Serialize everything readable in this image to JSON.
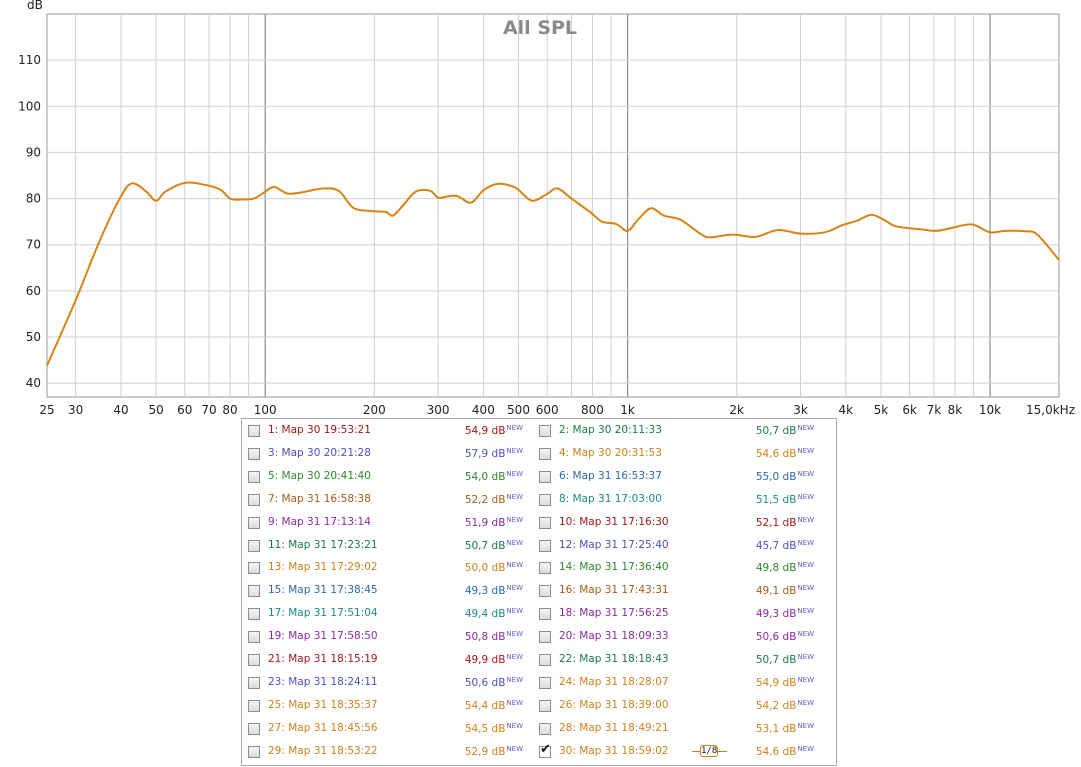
{
  "chart_data": {
    "type": "line",
    "title": "All SPL",
    "ylabel": "dB",
    "xscale": "log",
    "xlim": [
      25,
      15500
    ],
    "ylim": [
      37,
      120
    ],
    "y_ticks": [
      40,
      50,
      60,
      70,
      80,
      90,
      100,
      110
    ],
    "x_ticks": [
      25,
      30,
      40,
      50,
      60,
      70,
      80,
      100,
      200,
      300,
      400,
      500,
      600,
      800,
      1000,
      2000,
      3000,
      4000,
      5000,
      6000,
      7000,
      8000,
      10000,
      15000
    ],
    "x_tick_labels": [
      "25",
      "30",
      "40",
      "50",
      "60",
      "70",
      "80",
      "100",
      "200",
      "300",
      "400",
      "500",
      "600",
      "800",
      "1k",
      "2k",
      "3k",
      "4k",
      "5k",
      "6k",
      "7k",
      "8k",
      "10k",
      "15,0kHz"
    ],
    "grid": true,
    "series": [
      {
        "color": "#d98216",
        "points": [
          [
            25,
            43.8
          ],
          [
            30,
            58
          ],
          [
            35,
            71
          ],
          [
            40,
            80.5
          ],
          [
            43,
            83.3
          ],
          [
            47,
            81.5
          ],
          [
            50,
            79.5
          ],
          [
            53,
            81.5
          ],
          [
            60,
            83.4
          ],
          [
            67,
            83.1
          ],
          [
            75,
            82
          ],
          [
            80,
            80
          ],
          [
            86,
            79.8
          ],
          [
            93,
            80
          ],
          [
            100,
            81.5
          ],
          [
            106,
            82.5
          ],
          [
            115,
            81.1
          ],
          [
            125,
            81.3
          ],
          [
            145,
            82.2
          ],
          [
            160,
            81.6
          ],
          [
            175,
            78
          ],
          [
            195,
            77.3
          ],
          [
            215,
            77.1
          ],
          [
            225,
            76.3
          ],
          [
            240,
            78.5
          ],
          [
            260,
            81.5
          ],
          [
            285,
            81.7
          ],
          [
            300,
            80.2
          ],
          [
            320,
            80.5
          ],
          [
            340,
            80.5
          ],
          [
            370,
            79.1
          ],
          [
            400,
            81.8
          ],
          [
            440,
            83.2
          ],
          [
            490,
            82.4
          ],
          [
            520,
            80.6
          ],
          [
            550,
            79.5
          ],
          [
            600,
            81
          ],
          [
            640,
            82.2
          ],
          [
            700,
            80
          ],
          [
            790,
            77
          ],
          [
            850,
            75
          ],
          [
            930,
            74.5
          ],
          [
            1000,
            73
          ],
          [
            1070,
            75.5
          ],
          [
            1160,
            77.9
          ],
          [
            1260,
            76.3
          ],
          [
            1400,
            75.4
          ],
          [
            1600,
            72.2
          ],
          [
            1700,
            71.6
          ],
          [
            1950,
            72.2
          ],
          [
            2250,
            71.7
          ],
          [
            2600,
            73.2
          ],
          [
            3000,
            72.4
          ],
          [
            3500,
            72.7
          ],
          [
            3900,
            74.2
          ],
          [
            4300,
            75.2
          ],
          [
            4700,
            76.5
          ],
          [
            5100,
            75.4
          ],
          [
            5500,
            74
          ],
          [
            6500,
            73.3
          ],
          [
            7100,
            73
          ],
          [
            7800,
            73.6
          ],
          [
            8900,
            74.4
          ],
          [
            10000,
            72.7
          ],
          [
            11000,
            73
          ],
          [
            12500,
            72.9
          ],
          [
            13500,
            72.2
          ],
          [
            15500,
            66.7
          ]
        ]
      }
    ]
  },
  "legend": {
    "measurements": [
      {
        "label": "1: Мар 30 19:53:21",
        "value": "54,9 dB",
        "tag": "NEW",
        "color": "#a01818",
        "checked": false
      },
      {
        "label": "2: Мар 30 20:11:33",
        "value": "50,7 dB",
        "tag": "NEW",
        "color": "#1a7a4a",
        "checked": false
      },
      {
        "label": "3: Мар 30 20:21:28",
        "value": "57,9 dB",
        "tag": "NEW",
        "color": "#4a50b8",
        "checked": false
      },
      {
        "label": "4: Мар 30 20:31:53",
        "value": "54,6 dB",
        "tag": "NEW",
        "color": "#d0801a",
        "checked": false
      },
      {
        "label": "5: Мар 30 20:41:40",
        "value": "54,0 dB",
        "tag": "NEW",
        "color": "#2a8a2a",
        "checked": false
      },
      {
        "label": "6: Мар 31 16:53:37",
        "value": "55,0 dB",
        "tag": "NEW",
        "color": "#2a6aa8",
        "checked": false
      },
      {
        "label": "7: Мар 31 16:58:38",
        "value": "52,2 dB",
        "tag": "NEW",
        "color": "#a85a1a",
        "checked": false
      },
      {
        "label": "8: Мар 31 17:03:00",
        "value": "51,5 dB",
        "tag": "NEW",
        "color": "#1a8a8a",
        "checked": false
      },
      {
        "label": "9: Мар 31 17:13:14",
        "value": "51,9 dB",
        "tag": "NEW",
        "color": "#8a2a9a",
        "checked": false
      },
      {
        "label": "10: Мар 31 17:16:30",
        "value": "52,1 dB",
        "tag": "NEW",
        "color": "#a01818",
        "checked": false
      },
      {
        "label": "11: Мар 31 17:23:21",
        "value": "50,7 dB",
        "tag": "NEW",
        "color": "#1a7a4a",
        "checked": false
      },
      {
        "label": "12: Мар 31 17:25:40",
        "value": "45,7 dB",
        "tag": "NEW",
        "color": "#4a50b8",
        "checked": false
      },
      {
        "label": "13: Мар 31 17:29:02",
        "value": "50,0 dB",
        "tag": "NEW",
        "color": "#d0801a",
        "checked": false
      },
      {
        "label": "14: Мар 31 17:36:40",
        "value": "49,8 dB",
        "tag": "NEW",
        "color": "#2a8a2a",
        "checked": false
      },
      {
        "label": "15: Мар 31 17:38:45",
        "value": "49,3 dB",
        "tag": "NEW",
        "color": "#2a6aa8",
        "checked": false
      },
      {
        "label": "16: Мар 31 17:43:31",
        "value": "49,1 dB",
        "tag": "NEW",
        "color": "#a85a1a",
        "checked": false
      },
      {
        "label": "17: Мар 31 17:51:04",
        "value": "49,4 dB",
        "tag": "NEW",
        "color": "#1a8a8a",
        "checked": false
      },
      {
        "label": "18: Мар 31 17:56:25",
        "value": "49,3 dB",
        "tag": "NEW",
        "color": "#8a2a9a",
        "checked": false
      },
      {
        "label": "19: Мар 31 17:58:50",
        "value": "50,8 dB",
        "tag": "NEW",
        "color": "#8a2a9a",
        "checked": false
      },
      {
        "label": "20: Мар 31 18:09:33",
        "value": "50,6 dB",
        "tag": "NEW",
        "color": "#8a2a9a",
        "checked": false
      },
      {
        "label": "21: Мар 31 18:15:19",
        "value": "49,9 dB",
        "tag": "NEW",
        "color": "#a01818",
        "checked": false
      },
      {
        "label": "22: Мар 31 18:18:43",
        "value": "50,7 dB",
        "tag": "NEW",
        "color": "#1a7a4a",
        "checked": false
      },
      {
        "label": "23: Мар 31 18:24:11",
        "value": "50,6 dB",
        "tag": "NEW",
        "color": "#4a50b8",
        "checked": false
      },
      {
        "label": "24: Мар 31 18:28:07",
        "value": "54,9 dB",
        "tag": "NEW",
        "color": "#d0801a",
        "checked": false
      },
      {
        "label": "25: Мар 31 18:35:37",
        "value": "54,4 dB",
        "tag": "NEW",
        "color": "#d0801a",
        "checked": false
      },
      {
        "label": "26: Мар 31 18:39:00",
        "value": "54,2 dB",
        "tag": "NEW",
        "color": "#d0801a",
        "checked": false
      },
      {
        "label": "27: Мар 31 18:45:56",
        "value": "54,5 dB",
        "tag": "NEW",
        "color": "#d0801a",
        "checked": false
      },
      {
        "label": "28: Мар 31 18:49:21",
        "value": "53,1 dB",
        "tag": "NEW",
        "color": "#d0801a",
        "checked": false
      },
      {
        "label": "29: Мар 31 18:53:22",
        "value": "52,9 dB",
        "tag": "NEW",
        "color": "#d0801a",
        "checked": false
      },
      {
        "label": "30: Мар 31 18:59:02",
        "value": "54,6 dB",
        "tag": "NEW",
        "color": "#d0801a",
        "checked": true,
        "smoothing": "1/8"
      }
    ]
  }
}
